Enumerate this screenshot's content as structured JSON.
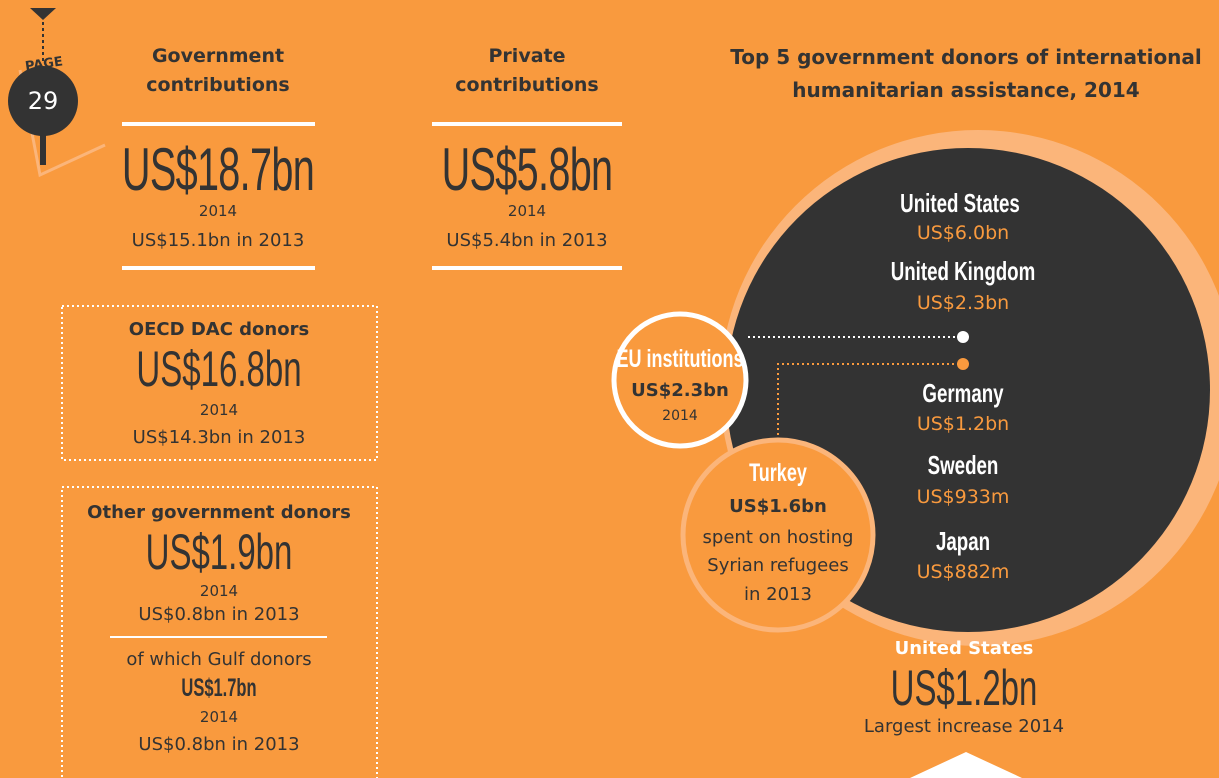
{
  "page_marker": {
    "label": "PAGE",
    "number": "29"
  },
  "government": {
    "title": [
      "Government",
      "contributions"
    ],
    "amount": "US$18.7bn",
    "year": "2014",
    "previous": "US$15.1bn in 2013"
  },
  "private": {
    "title": [
      "Private",
      "contributions"
    ],
    "amount": "US$5.8bn",
    "year": "2014",
    "previous": "US$5.4bn in 2013"
  },
  "oecd": {
    "title": "OECD DAC donors",
    "amount": "US$16.8bn",
    "year": "2014",
    "previous": "US$14.3bn in 2013"
  },
  "other": {
    "title": "Other government donors",
    "amount": "US$1.9bn",
    "year": "2014",
    "previous": "US$0.8bn in 2013",
    "gulf": {
      "title": "of which Gulf donors",
      "amount": "US$1.7bn",
      "year": "2014",
      "previous": "US$0.8bn in 2013"
    }
  },
  "top_donors": {
    "title": [
      "Top 5 government donors of international",
      "humanitarian assistance, 2014"
    ],
    "donors": [
      {
        "name": "United States",
        "amount": "US$6.0bn"
      },
      {
        "name": "United Kingdom",
        "amount": "US$2.3bn"
      },
      {
        "name": "Germany",
        "amount": "US$1.2bn"
      },
      {
        "name": "Sweden",
        "amount": "US$933m"
      },
      {
        "name": "Japan",
        "amount": "US$882m"
      }
    ],
    "eu": {
      "name": "EU institutions",
      "amount": "US$2.3bn",
      "year": "2014"
    },
    "turkey": {
      "name": "Turkey",
      "amount": "US$1.6bn",
      "note": [
        "spent on hosting",
        "Syrian refugees",
        "in 2013"
      ]
    }
  },
  "largest_increase": {
    "name": "United States",
    "amount": "US$1.2bn",
    "note": "Largest increase 2014"
  }
}
